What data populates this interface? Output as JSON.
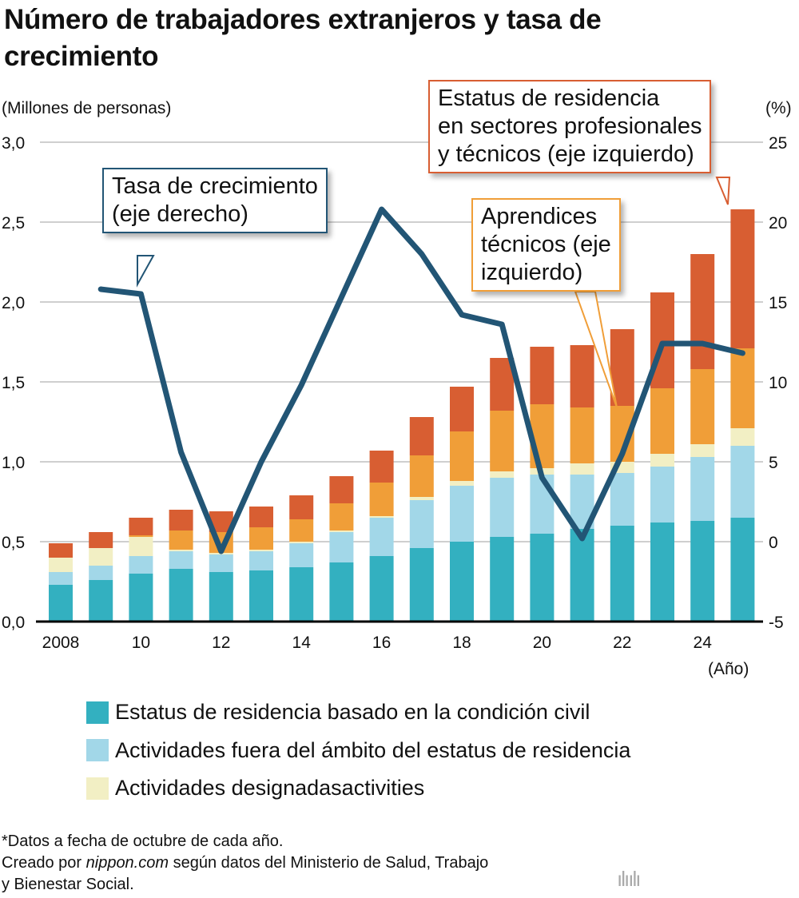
{
  "chart_data": {
    "type": "bar",
    "subtype": "stacked bar with line on secondary axis",
    "title": "Número de trabajadores extranjeros y tasa de crecimiento",
    "ylabel_left": "(Millones de personas)",
    "ylabel_right": "(%)",
    "xlabel": "(Año)",
    "ylim_left": [
      0,
      3.0
    ],
    "ylim_right": [
      -5,
      25
    ],
    "yticks_left": [
      "0,0",
      "0,5",
      "1,0",
      "1,5",
      "2,0",
      "2,5",
      "3,0"
    ],
    "yticks_right": [
      "-5",
      "0",
      "5",
      "10",
      "15",
      "20",
      "25"
    ],
    "xticks": [
      "2008",
      "10",
      "12",
      "14",
      "16",
      "18",
      "20",
      "22",
      "24"
    ],
    "grid": "horizontal",
    "legend_placement": "bottom",
    "categories": [
      2008,
      2009,
      2010,
      2011,
      2012,
      2013,
      2014,
      2015,
      2016,
      2017,
      2018,
      2019,
      2020,
      2021,
      2022,
      2023,
      2024,
      2025
    ],
    "series": [
      {
        "name": "Estatus de residencia basado en la condición civil",
        "color": "#33b0c0",
        "values": [
          0.23,
          0.26,
          0.3,
          0.33,
          0.31,
          0.32,
          0.34,
          0.37,
          0.41,
          0.46,
          0.5,
          0.53,
          0.55,
          0.58,
          0.6,
          0.62,
          0.63,
          0.65
        ]
      },
      {
        "name": "Actividades fuera del ámbito del estatus de residencia",
        "color": "#a2d7e8",
        "values": [
          0.08,
          0.09,
          0.11,
          0.11,
          0.11,
          0.12,
          0.15,
          0.19,
          0.24,
          0.3,
          0.35,
          0.37,
          0.37,
          0.34,
          0.33,
          0.35,
          0.4,
          0.45
        ]
      },
      {
        "name": "Actividades designadasactivities",
        "color": "#f2efc4",
        "values": [
          0.09,
          0.11,
          0.12,
          0.01,
          0.01,
          0.01,
          0.01,
          0.01,
          0.01,
          0.02,
          0.03,
          0.04,
          0.04,
          0.07,
          0.07,
          0.08,
          0.08,
          0.11
        ]
      },
      {
        "name": "Aprendices técnicos (eje izquierdo)",
        "color": "#f09e38",
        "values": [
          0.0,
          0.0,
          0.01,
          0.12,
          0.13,
          0.14,
          0.14,
          0.17,
          0.21,
          0.26,
          0.31,
          0.38,
          0.4,
          0.35,
          0.35,
          0.41,
          0.47,
          0.5
        ]
      },
      {
        "name": "Estatus de residencia en sectores profesionales y técnicos (eje izquierdo)",
        "color": "#d85e32",
        "values": [
          0.09,
          0.1,
          0.11,
          0.13,
          0.13,
          0.13,
          0.15,
          0.17,
          0.2,
          0.24,
          0.28,
          0.33,
          0.36,
          0.39,
          0.48,
          0.6,
          0.72,
          0.87
        ]
      }
    ],
    "line": {
      "name": "Tasa de crecimiento (eje derecho)",
      "axis": "right",
      "color": "#225575",
      "x": [
        2009,
        2010,
        2011,
        2012,
        2013,
        2014,
        2015,
        2016,
        2017,
        2018,
        2019,
        2020,
        2021,
        2022,
        2023,
        2024,
        2025
      ],
      "values": [
        15.8,
        15.5,
        5.6,
        -0.6,
        5.0,
        9.8,
        15.3,
        20.8,
        18.0,
        14.2,
        13.6,
        4.0,
        0.2,
        5.5,
        12.4,
        12.4,
        11.8
      ]
    }
  },
  "callouts": {
    "growth": "Tasa de crecimiento\n(eje derecho)",
    "trainees": "Aprendices\ntécnicos (eje\nizquierdo)",
    "professional": "Estatus de residencia\nen sectores profesionales\ny técnicos (eje izquierdo)"
  },
  "legend": [
    "Estatus de residencia basado en la condición civil",
    "Actividades fuera del ámbito del estatus de residencia",
    "Actividades designadasactivities"
  ],
  "footer": {
    "note": "*Datos a fecha de octubre de cada año.",
    "source_prefix": "Creado por ",
    "source_site": "nippon.com",
    "source_rest": " según datos del Ministerio de Salud, Trabajo",
    "source_line2": "y Bienestar Social."
  },
  "logo": {
    "text": "nippon",
    "suffix": ".com"
  }
}
